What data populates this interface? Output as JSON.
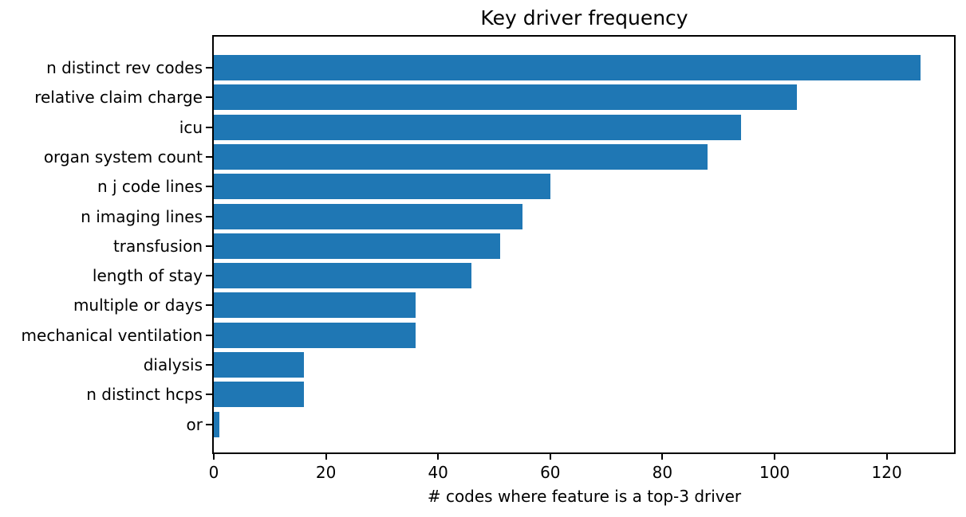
{
  "chart_data": {
    "type": "bar",
    "orientation": "horizontal",
    "title": "Key driver frequency",
    "xlabel": "# codes where feature is a top-3 driver",
    "ylabel": "",
    "categories": [
      "n distinct rev codes",
      "relative claim charge",
      "icu",
      "organ system count",
      "n j code lines",
      "n imaging lines",
      "transfusion",
      "length of stay",
      "multiple or days",
      "mechanical ventilation",
      "dialysis",
      "n distinct hcps",
      "or"
    ],
    "values": [
      126,
      104,
      94,
      88,
      60,
      55,
      51,
      46,
      36,
      36,
      16,
      16,
      1
    ],
    "xticks": [
      0,
      20,
      40,
      60,
      80,
      100,
      120
    ],
    "xlim": [
      0,
      132
    ],
    "grid": false,
    "legend": null,
    "bar_color": "#1f77b4",
    "axis_color": "#000000",
    "background_color": "#ffffff"
  }
}
